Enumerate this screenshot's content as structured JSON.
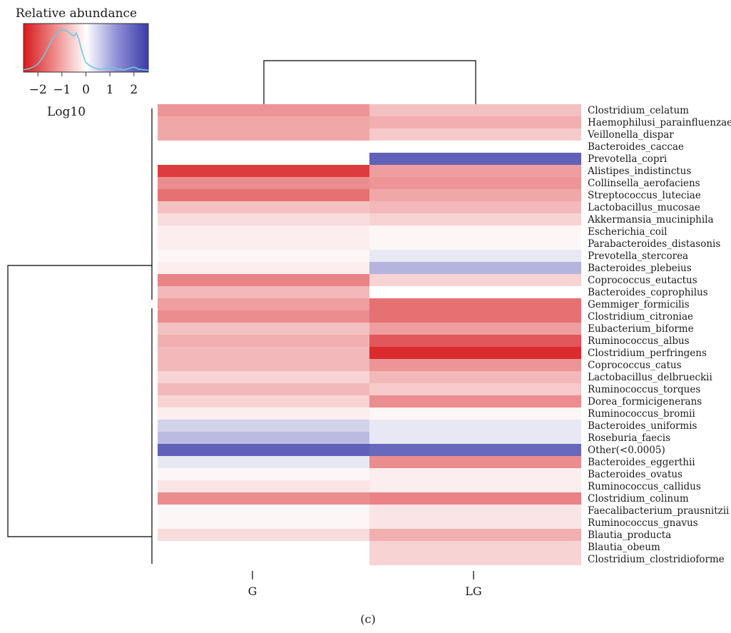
{
  "chart_data": {
    "type": "heatmap",
    "legend": {
      "title": "Relative abundance",
      "ticks": [
        "−2",
        "−1",
        "0",
        "1",
        "2"
      ],
      "tick_values": [
        -2,
        -1,
        0,
        1,
        2
      ],
      "range": [
        -2.6,
        2.6
      ],
      "unit_label": "Log10",
      "colors": {
        "low": "#d7191c",
        "mid": "#ffffff",
        "high": "#3b3ba8",
        "density_line": "#6fc8e0"
      }
    },
    "columns": [
      "G",
      "LG"
    ],
    "rows": [
      "Clostridium_celatum",
      "Haemophilusi_parainfluenzae",
      "Veillonella_dispar",
      "Bacteroides_caccae",
      "Prevotella_copri",
      "Alistipes_indistinctus",
      "Collinsella_aerofaciens",
      "Streptococcus_luteciae",
      "Lactobacillus_mucosae",
      "Akkermansia_muciniphila",
      "Escherichia_coil",
      "Parabacteroides_distasonis",
      "Prevotella_stercorea",
      "Bacteroides_plebeius",
      "Coprococcus_eutactus",
      "Bacteroides_coprophilus",
      "Gemmiger_formicilis",
      "Clostridium_citroniae",
      "Eubacterium_biforme",
      "Ruminococcus_albus",
      "Clostridium_perfringens",
      "Coprococcus_catus",
      "Lactobacillus_delbrueckii",
      "Ruminococcus_torques",
      "Dorea_formicigenerans",
      "Ruminococcus_bromii",
      "Bacteroides_uniformis",
      "Roseburia_faecis",
      "Other(<0.0005)",
      "Bacteroides_eggerthii",
      "Bacteroides_ovatus",
      "Ruminococcus_callidus",
      "Clostridium_colinum",
      "Faecalibacterium_prausnitzii",
      "Ruminococcus_gnavus",
      "Blautia_producta",
      "Blautia_obeum",
      "Clostridium_clostridioforme"
    ],
    "values": [
      [
        -1.2,
        -0.7
      ],
      [
        -1.0,
        -0.9
      ],
      [
        -1.0,
        -0.6
      ],
      [
        null,
        null
      ],
      [
        null,
        2.1
      ],
      [
        -2.2,
        -1.1
      ],
      [
        -1.3,
        -1.2
      ],
      [
        -1.6,
        -1.0
      ],
      [
        -0.7,
        -0.8
      ],
      [
        -0.4,
        -0.5
      ],
      [
        -0.2,
        -0.1
      ],
      [
        -0.2,
        -0.1
      ],
      [
        -0.1,
        0.3
      ],
      [
        -0.2,
        1.0
      ],
      [
        -1.4,
        -0.5
      ],
      [
        -0.8,
        null
      ],
      [
        -1.1,
        -1.6
      ],
      [
        -1.3,
        -1.6
      ],
      [
        -0.7,
        -1.1
      ],
      [
        -0.9,
        -1.9
      ],
      [
        -0.8,
        -2.4
      ],
      [
        -0.8,
        -1.2
      ],
      [
        -0.5,
        -0.8
      ],
      [
        -0.8,
        -0.6
      ],
      [
        -0.5,
        -1.3
      ],
      [
        -0.2,
        -0.1
      ],
      [
        0.6,
        0.3
      ],
      [
        0.9,
        0.3
      ],
      [
        2.1,
        2.0
      ],
      [
        0.3,
        -1.3
      ],
      [
        -0.1,
        -0.2
      ],
      [
        -0.3,
        -0.2
      ],
      [
        -1.3,
        -1.4
      ],
      [
        -0.1,
        -0.3
      ],
      [
        -0.1,
        -0.3
      ],
      [
        -0.4,
        -0.9
      ],
      [
        null,
        -0.5
      ],
      [
        null,
        -0.5
      ]
    ],
    "legend_density": [
      [
        -2.6,
        0.02
      ],
      [
        -2.4,
        0.04
      ],
      [
        -2.2,
        0.08
      ],
      [
        -2.0,
        0.15
      ],
      [
        -1.8,
        0.3
      ],
      [
        -1.6,
        0.5
      ],
      [
        -1.4,
        0.72
      ],
      [
        -1.2,
        0.86
      ],
      [
        -1.0,
        0.92
      ],
      [
        -0.8,
        0.9
      ],
      [
        -0.6,
        0.82
      ],
      [
        -0.5,
        0.78
      ],
      [
        -0.4,
        0.85
      ],
      [
        -0.3,
        0.72
      ],
      [
        -0.2,
        0.5
      ],
      [
        -0.1,
        0.32
      ],
      [
        0.0,
        0.18
      ],
      [
        0.2,
        0.1
      ],
      [
        0.4,
        0.05
      ],
      [
        0.6,
        0.03
      ],
      [
        0.8,
        0.05
      ],
      [
        1.0,
        0.09
      ],
      [
        1.2,
        0.06
      ],
      [
        1.4,
        0.03
      ],
      [
        1.6,
        0.02
      ],
      [
        1.8,
        0.05
      ],
      [
        2.0,
        0.08
      ],
      [
        2.2,
        0.03
      ],
      [
        2.6,
        0.01
      ]
    ]
  },
  "caption": "(c)"
}
